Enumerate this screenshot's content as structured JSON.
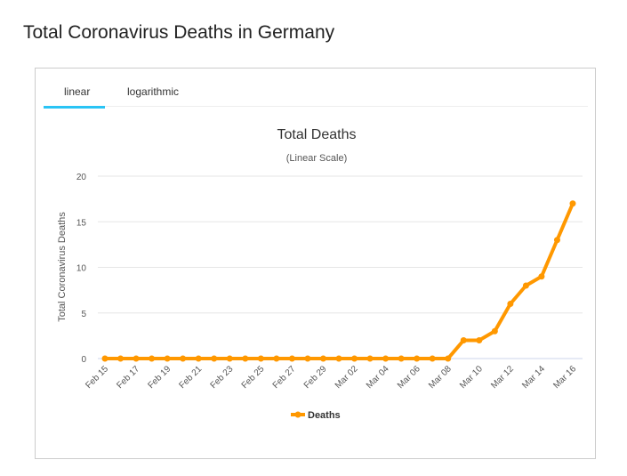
{
  "page_title": "Total Coronavirus Deaths in Germany",
  "tabs": [
    {
      "label": "linear",
      "active": true
    },
    {
      "label": "logarithmic",
      "active": false
    }
  ],
  "colors": {
    "series": "#ff9800",
    "tab_active": "#2ac4f5"
  },
  "chart_data": {
    "type": "line",
    "title": "Total Deaths",
    "subtitle": "(Linear Scale)",
    "ylabel": "Total Coronavirus Deaths",
    "xlabel": "",
    "ylim": [
      0,
      20
    ],
    "yticks": [
      0,
      5,
      10,
      15,
      20
    ],
    "x": [
      "Feb 15",
      "Feb 16",
      "Feb 17",
      "Feb 18",
      "Feb 19",
      "Feb 20",
      "Feb 21",
      "Feb 22",
      "Feb 23",
      "Feb 24",
      "Feb 25",
      "Feb 26",
      "Feb 27",
      "Feb 28",
      "Feb 29",
      "Mar 01",
      "Mar 02",
      "Mar 03",
      "Mar 04",
      "Mar 05",
      "Mar 06",
      "Mar 07",
      "Mar 08",
      "Mar 09",
      "Mar 10",
      "Mar 11",
      "Mar 12",
      "Mar 13",
      "Mar 14",
      "Mar 15",
      "Mar 16"
    ],
    "xtick_labels": [
      "Feb 15",
      "Feb 17",
      "Feb 19",
      "Feb 21",
      "Feb 23",
      "Feb 25",
      "Feb 27",
      "Feb 29",
      "Mar 02",
      "Mar 04",
      "Mar 06",
      "Mar 08",
      "Mar 10",
      "Mar 12",
      "Mar 14",
      "Mar 16"
    ],
    "series": [
      {
        "name": "Deaths",
        "values": [
          0,
          0,
          0,
          0,
          0,
          0,
          0,
          0,
          0,
          0,
          0,
          0,
          0,
          0,
          0,
          0,
          0,
          0,
          0,
          0,
          0,
          0,
          0,
          2,
          2,
          3,
          6,
          8,
          9,
          13,
          17
        ]
      }
    ],
    "legend": "bottom-center",
    "grid": true
  }
}
